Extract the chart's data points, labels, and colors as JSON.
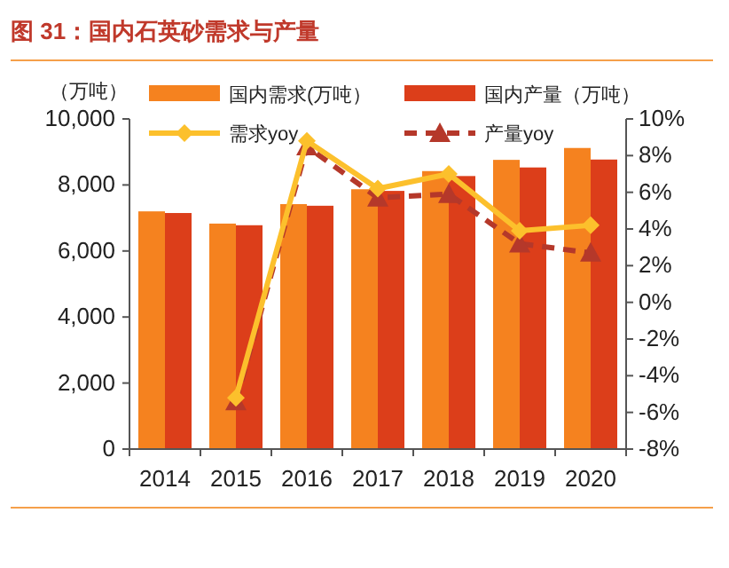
{
  "chart_data": {
    "type": "bar",
    "title": "图 31：国内石英砂需求与产量",
    "ylabel": "（万吨）",
    "categories": [
      "2014",
      "2015",
      "2016",
      "2017",
      "2018",
      "2019",
      "2020"
    ],
    "series": [
      {
        "name": "国内需求(万吨）",
        "color": "#f5821f",
        "values": [
          7200,
          6830,
          7420,
          7870,
          8420,
          8760,
          9120
        ]
      },
      {
        "name": "国内产量（万吨）",
        "color": "#dc3e1a",
        "values": [
          7150,
          6780,
          7370,
          7820,
          8270,
          8530,
          8770
        ]
      },
      {
        "name": "需求yoy",
        "type": "line",
        "axis": "y2",
        "color": "#fcc02c",
        "marker": "diamond",
        "line_style": "solid",
        "values": [
          null,
          -5.2,
          8.8,
          6.2,
          7.0,
          3.9,
          4.2
        ]
      },
      {
        "name": "产量yoy",
        "type": "line",
        "axis": "y2",
        "color": "#b5382a",
        "marker": "triangle",
        "line_style": "dashed",
        "values": [
          null,
          -5.4,
          8.5,
          5.7,
          5.9,
          3.2,
          2.7
        ]
      }
    ],
    "ylim": [
      0,
      10000
    ],
    "yticks": [
      0,
      {
        "value": 2000,
        "label": "2,000"
      },
      {
        "value": 4000,
        "label": "4,000"
      },
      {
        "value": 6000,
        "label": "6,000"
      },
      {
        "value": 8000,
        "label": "8,000"
      },
      {
        "value": 10000,
        "label": "10,000"
      }
    ],
    "y2lim": [
      -8,
      10
    ],
    "y2ticks": [
      {
        "value": -8,
        "label": "-8%"
      },
      {
        "value": -6,
        "label": "-6%"
      },
      {
        "value": -4,
        "label": "-4%"
      },
      {
        "value": -2,
        "label": "-2%"
      },
      {
        "value": 0,
        "label": "0%"
      },
      {
        "value": 2,
        "label": "2%"
      },
      {
        "value": 4,
        "label": "4%"
      },
      {
        "value": 6,
        "label": "6%"
      },
      {
        "value": 8,
        "label": "8%"
      },
      {
        "value": 10,
        "label": "10%"
      }
    ],
    "legend": "top",
    "grid": false
  }
}
